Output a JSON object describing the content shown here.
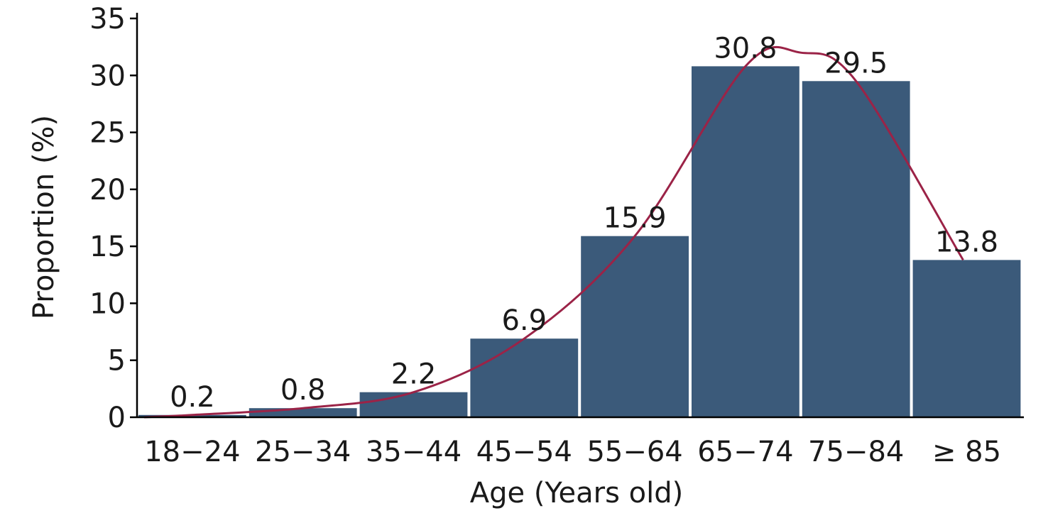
{
  "chart_data": {
    "type": "bar",
    "title": "",
    "xlabel": "Age (Years old)",
    "ylabel": "Proportion (%)",
    "categories": [
      "18−24",
      "25−34",
      "35−44",
      "45−54",
      "55−64",
      "65−74",
      "75−84",
      "≥ 85"
    ],
    "values": [
      0.2,
      0.8,
      2.2,
      6.9,
      15.9,
      30.8,
      29.5,
      13.8
    ],
    "value_labels": [
      "0.2",
      "0.8",
      "2.2",
      "6.9",
      "15.9",
      "30.8",
      "29.5",
      "13.8"
    ],
    "ylim": [
      0,
      35
    ],
    "yticks": [
      0,
      5,
      10,
      15,
      20,
      25,
      30,
      35
    ],
    "grid": false,
    "legend": "none",
    "trend_curve": "smooth fitted curve over bars",
    "colors": {
      "bar": "#3b5a7a",
      "curve": "#9b2347",
      "axis": "#000000"
    }
  }
}
